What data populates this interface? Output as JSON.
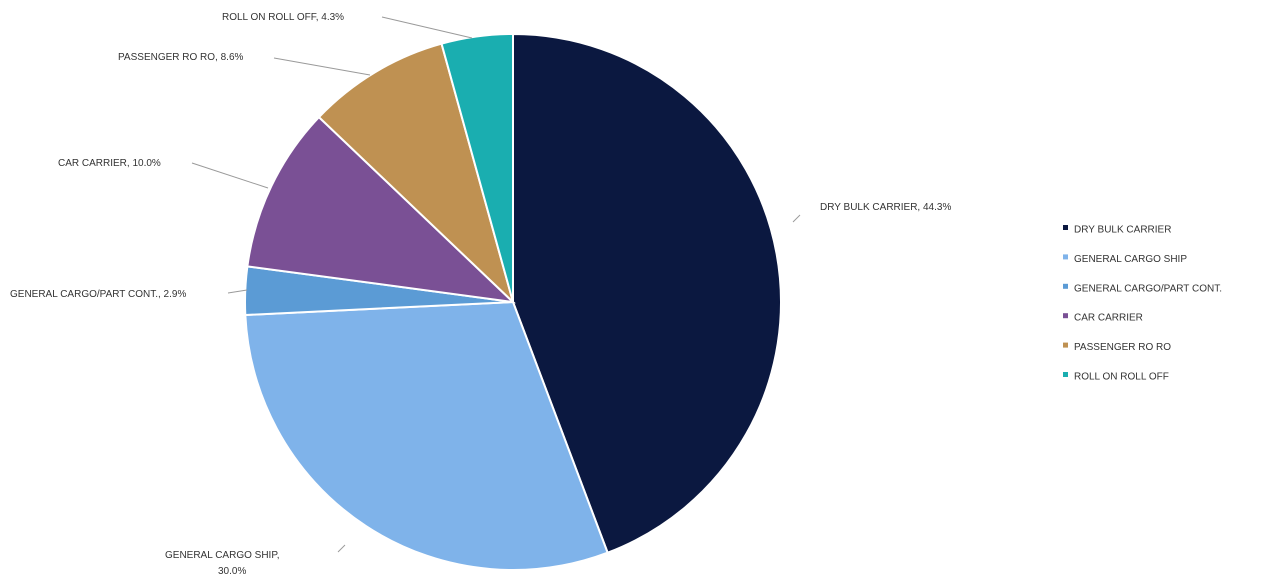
{
  "chart_data": {
    "type": "pie",
    "title": "",
    "legend_position": "right",
    "start_angle_deg": 0,
    "direction": "clockwise",
    "slices": [
      {
        "name": "DRY BULK CARRIER",
        "value": 44.3,
        "label": "DRY BULK CARRIER, 44.3%",
        "color": "#0b1840"
      },
      {
        "name": "GENERAL CARGO SHIP",
        "value": 30.0,
        "label": "GENERAL CARGO SHIP,",
        "label2": "30.0%",
        "color": "#7fb3ea"
      },
      {
        "name": "GENERAL CARGO/PART CONT.",
        "value": 2.9,
        "label": "GENERAL CARGO/PART CONT., 2.9%",
        "color": "#5b9bd5"
      },
      {
        "name": "CAR CARRIER",
        "value": 10.0,
        "label": "CAR CARRIER, 10.0%",
        "color": "#7a5095"
      },
      {
        "name": "PASSENGER RO RO",
        "value": 8.6,
        "label": "PASSENGER RO RO, 8.6%",
        "color": "#bf9152"
      },
      {
        "name": "ROLL ON ROLL OFF",
        "value": 4.3,
        "label": "ROLL ON ROLL OFF, 4.3%",
        "color": "#1aaeb0"
      }
    ]
  }
}
